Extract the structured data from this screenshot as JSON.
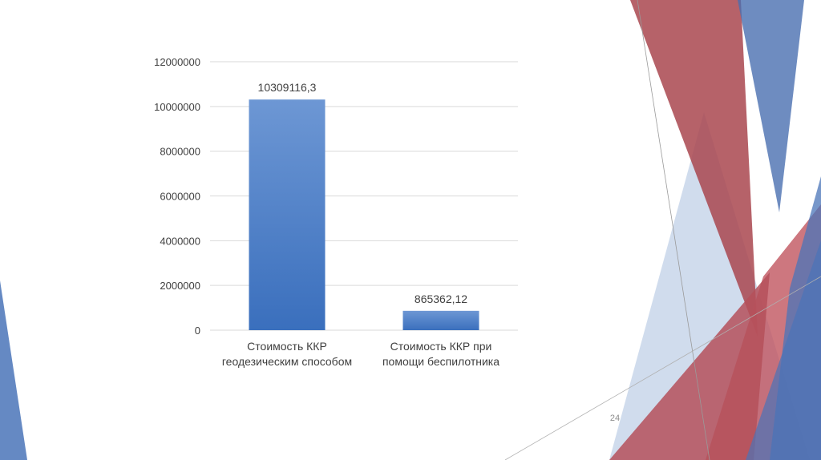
{
  "slide": {
    "page_number": "24"
  },
  "colors": {
    "bar_top": "#6d97d4",
    "bar_bottom": "#3a6fbd",
    "accent_red": "#b5505a",
    "accent_blue": "#4a74b8",
    "accent_lightblue": "#a9c0de",
    "gridline": "#d9d9d9",
    "text": "#404040"
  },
  "chart_data": {
    "type": "bar",
    "title": "",
    "xlabel": "",
    "ylabel": "",
    "categories": [
      [
        "Стоимость ККР",
        "геодезическим способом"
      ],
      [
        "Стоимость ККР при",
        "помощи беспилотника"
      ]
    ],
    "values": [
      10309116.3,
      865362.12
    ],
    "data_labels": [
      "10309116,3",
      "865362,12"
    ],
    "ylim": [
      0,
      12000000
    ],
    "yticks": [
      0,
      2000000,
      4000000,
      6000000,
      8000000,
      10000000,
      12000000
    ],
    "ytick_labels": [
      "0",
      "2000000",
      "4000000",
      "6000000",
      "8000000",
      "10000000",
      "12000000"
    ],
    "grid": true,
    "legend": "none"
  }
}
